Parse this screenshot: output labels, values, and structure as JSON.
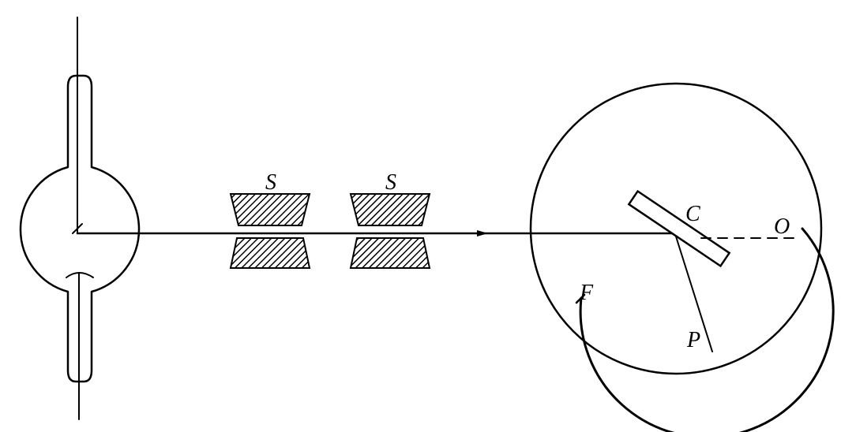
{
  "diagram": {
    "labels": {
      "slit_1": "S",
      "slit_2": "S",
      "crystal": "C",
      "origin": "O",
      "film_end": "F",
      "point": "P"
    }
  }
}
